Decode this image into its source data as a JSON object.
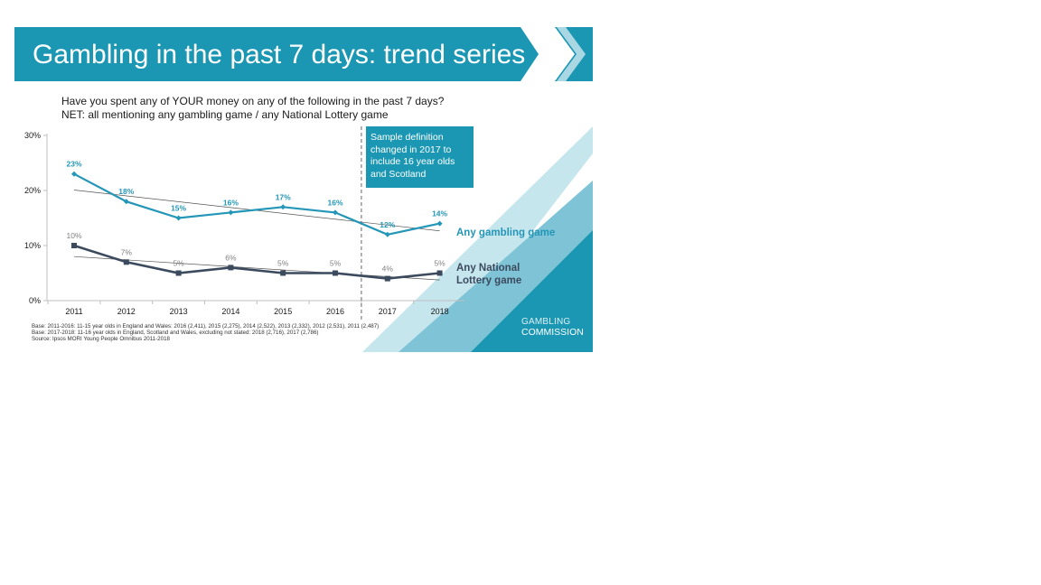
{
  "header": {
    "title": "Gambling in the past 7 days: trend series"
  },
  "question": {
    "line1": "Have you spent any of YOUR money on any of the following in the past 7 days?",
    "line2": "NET: all mentioning any gambling game / any National Lottery game"
  },
  "note_box": "Sample definition changed in 2017 to include 16 year olds and Scotland",
  "series_labels": {
    "gambling": "Any gambling game",
    "lottery_line1": "Any National",
    "lottery_line2": "Lottery game"
  },
  "footnotes": {
    "line1": "Base: 2011-2016: 11-15 year olds in England and Wales: 2016 (2,411), 2015 (2,275), 2014 (2,522), 2013 (2,332), 2012 (2,531), 2011 (2,487)",
    "line2": "Base: 2017-2018: 11-16 year olds in England, Scotland and Wales, excluding not stated: 2018 (2,716), 2017 (2,786)",
    "line3": "Source: Ipsos MORI Young People Omnibus 2011-2018"
  },
  "logo": {
    "line1": "GAMBLING",
    "line2": "COMMISSION"
  },
  "colors": {
    "brand": "#1b97b4",
    "gambling_series": "#2496b8",
    "lottery_series": "#3c4a5e",
    "trendline": "#555555",
    "data_label_lottery": "#7f7f7f"
  },
  "chart_data": {
    "type": "line",
    "categories": [
      "2011",
      "2012",
      "2013",
      "2014",
      "2015",
      "2016",
      "2017",
      "2018"
    ],
    "series": [
      {
        "name": "Any gambling game",
        "values": [
          23,
          18,
          15,
          16,
          17,
          16,
          12,
          14
        ],
        "labels": [
          "23%",
          "18%",
          "15%",
          "16%",
          "17%",
          "16%",
          "12%",
          "14%"
        ],
        "marker": "diamond",
        "trendline": true
      },
      {
        "name": "Any National Lottery game",
        "values": [
          10,
          7,
          5,
          6,
          5,
          5,
          4,
          5
        ],
        "labels": [
          "10%",
          "7%",
          "5%",
          "6%",
          "5%",
          "5%",
          "4%",
          "5%"
        ],
        "marker": "square",
        "trendline": true
      }
    ],
    "y_ticks": [
      "0%",
      "10%",
      "20%",
      "30%"
    ],
    "ylim": [
      0,
      30
    ],
    "break_between": [
      "2016",
      "2017"
    ],
    "grid": false,
    "legend": "inline-right"
  }
}
